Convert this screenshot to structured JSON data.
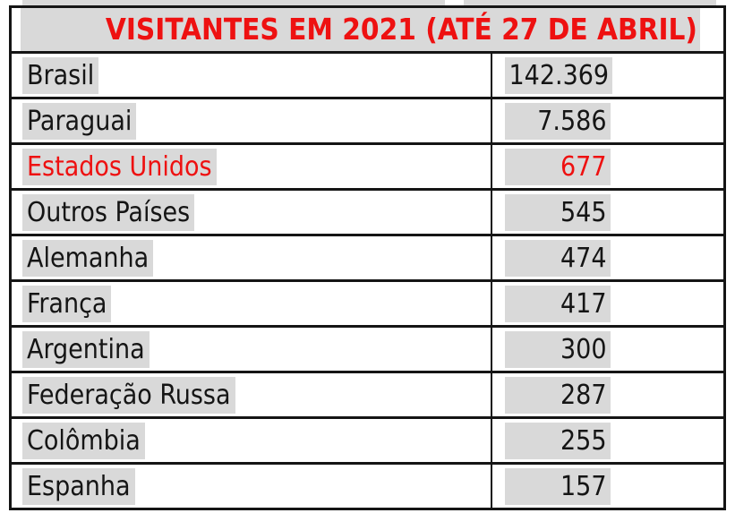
{
  "colors": {
    "highlight": "#d9d9d9",
    "accent_red": "#ee1111",
    "text": "#151515",
    "border": "#151515",
    "background": "#ffffff"
  },
  "header": {
    "title": "VISITANTES EM 2021 (ATÉ 27 DE ABRIL)"
  },
  "table": {
    "accent_row": "Estados Unidos",
    "rows": [
      {
        "country": "Brasil",
        "visitors": "142.369"
      },
      {
        "country": "Paraguai",
        "visitors": "7.586"
      },
      {
        "country": "Estados Unidos",
        "visitors": "677"
      },
      {
        "country": "Outros Países",
        "visitors": "545"
      },
      {
        "country": "Alemanha",
        "visitors": "474"
      },
      {
        "country": "França",
        "visitors": "417"
      },
      {
        "country": "Argentina",
        "visitors": "300"
      },
      {
        "country": "Federação Russa",
        "visitors": "287"
      },
      {
        "country": "Colômbia",
        "visitors": "255"
      },
      {
        "country": "Espanha",
        "visitors": "157"
      }
    ]
  },
  "chart_data": {
    "type": "table",
    "title": "VISITANTES EM 2021 (ATÉ 27 DE ABRIL)",
    "categories": [
      "Brasil",
      "Paraguai",
      "Estados Unidos",
      "Outros Países",
      "Alemanha",
      "França",
      "Argentina",
      "Federação Russa",
      "Colômbia",
      "Espanha"
    ],
    "values": [
      142369,
      7586,
      677,
      545,
      474,
      417,
      300,
      287,
      255,
      157
    ],
    "annotations": [
      "Row 'Estados Unidos' shown in red",
      "All text carries light-gray character highlighting"
    ]
  }
}
